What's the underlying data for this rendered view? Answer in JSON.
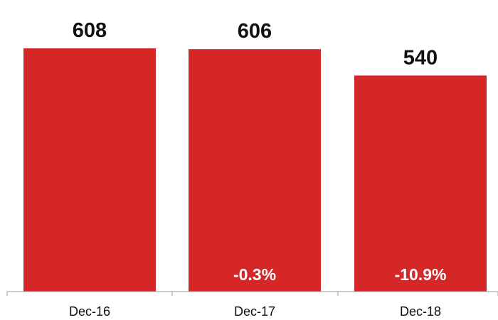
{
  "chart_data": {
    "type": "bar",
    "categories": [
      "Dec-16",
      "Dec-17",
      "Dec-18"
    ],
    "values": [
      608,
      606,
      540
    ],
    "data_labels": [
      "608",
      "606",
      "540"
    ],
    "change_labels": [
      "",
      "-0.3%",
      "-10.9%"
    ],
    "ylim": [
      0,
      608
    ],
    "bar_color": "#d62728",
    "title": "",
    "xlabel": "",
    "ylabel": "",
    "grid": false,
    "legend": "none"
  }
}
